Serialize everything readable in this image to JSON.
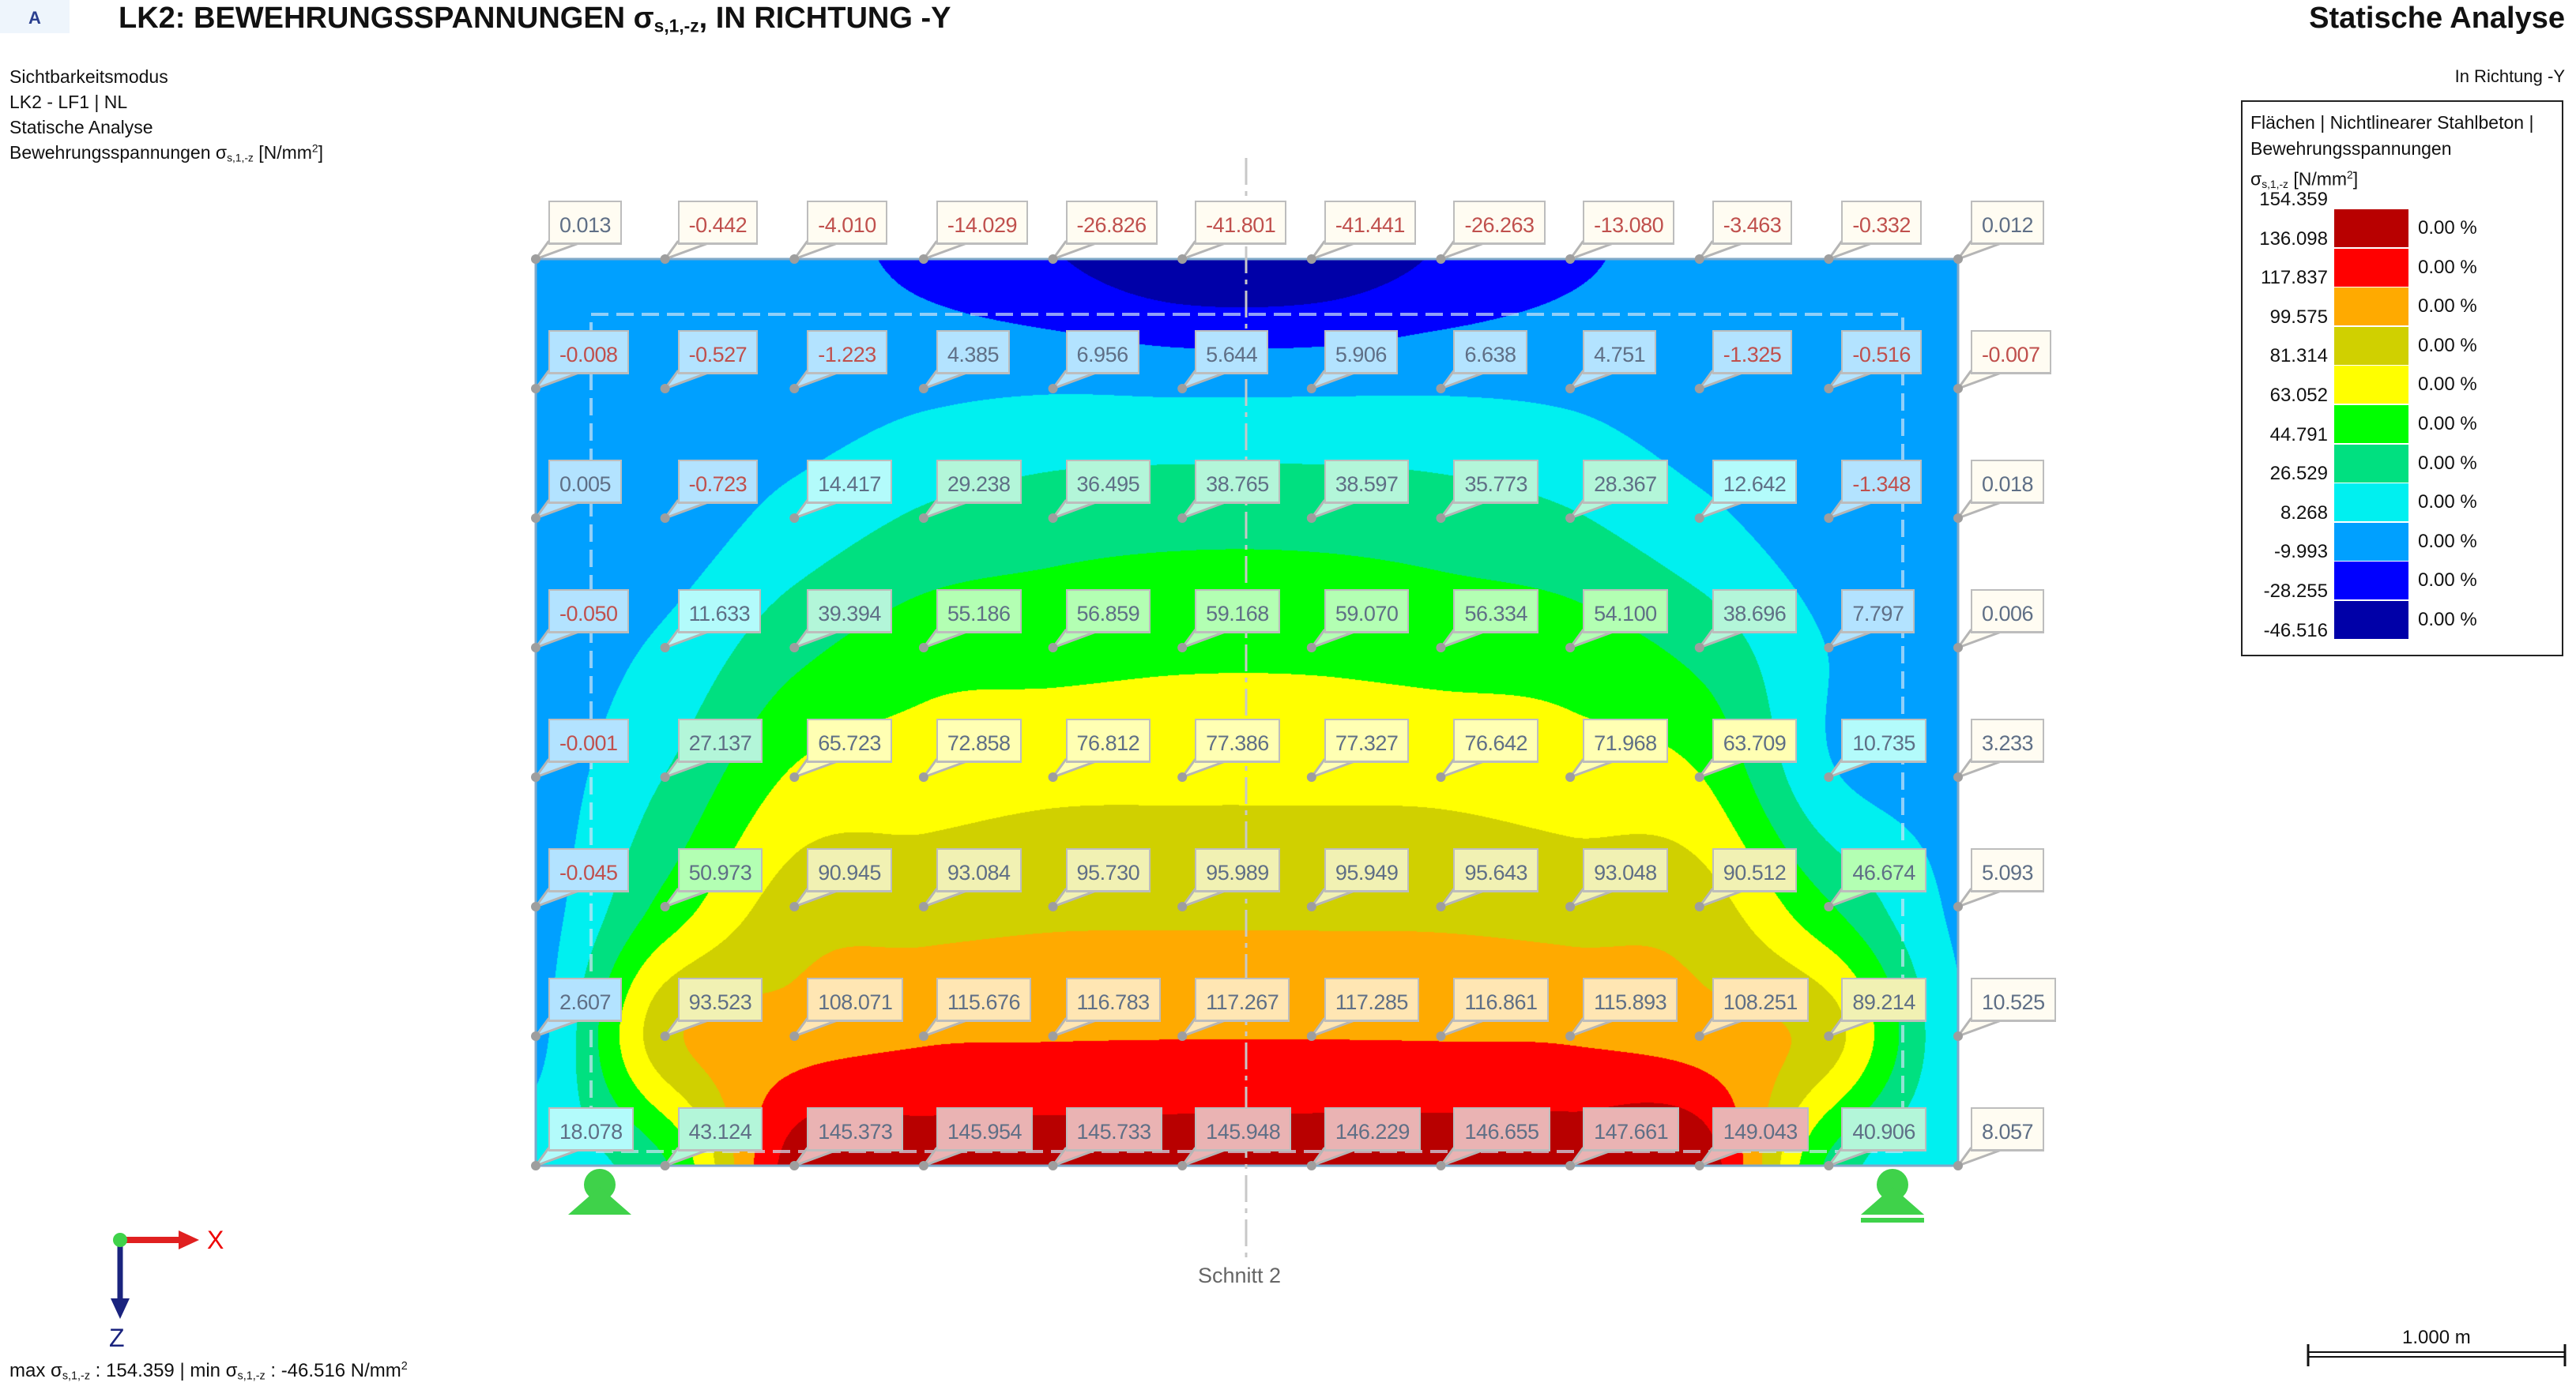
{
  "header": {
    "tab": "A",
    "title_main": "LK2: BEWEHRUNGSSPANNUNGEN σ",
    "title_sub": "s,1,-z",
    "title_rest": ", IN RICHTUNG -Y",
    "right_title": "Statische Analyse",
    "direction": "In Richtung -Y"
  },
  "info": {
    "line1": "Sichtbarkeitsmodus",
    "line2": "LK2 - LF1 | NL",
    "line3": "Statische Analyse",
    "line4_main": "Bewehrungsspannungen σ",
    "line4_sub": "s,1,-z",
    "line4_unit": " [N/mm",
    "line4_sup": "2",
    "line4_end": "]"
  },
  "legend": {
    "line1": "Flächen | Nichtlinearer Stahlbeton |",
    "line2": "Bewehrungsspannungen",
    "line3_sym": "σ",
    "line3_sub": "s,1,-z",
    "line3_unit": " [N/mm",
    "line3_sup": "2",
    "line3_end": "]",
    "values": [
      "154.359",
      "136.098",
      "117.837",
      "99.575",
      "81.314",
      "63.052",
      "44.791",
      "26.529",
      "8.268",
      "-9.993",
      "-28.255",
      "-46.516"
    ],
    "colors": [
      "#b80000",
      "#ff0000",
      "#ffaa00",
      "#d0d000",
      "#ffff00",
      "#00ff00",
      "#00e080",
      "#00f0f0",
      "#00a0ff",
      "#0000ff",
      "#0000a8"
    ],
    "percents": [
      "0.00 %",
      "0.00 %",
      "0.00 %",
      "0.00 %",
      "0.00 %",
      "0.00 %",
      "0.00 %",
      "0.00 %",
      "0.00 %",
      "0.00 %",
      "0.00 %"
    ]
  },
  "grid_values": [
    [
      "0.013",
      "-0.442",
      "-4.010",
      "-14.029",
      "-26.826",
      "-41.801",
      "-41.441",
      "-26.263",
      "-13.080",
      "-3.463",
      "-0.332",
      "0.012"
    ],
    [
      "-0.008",
      "-0.527",
      "-1.223",
      "4.385",
      "6.956",
      "5.644",
      "5.906",
      "6.638",
      "4.751",
      "-1.325",
      "-0.516",
      "-0.007"
    ],
    [
      "0.005",
      "-0.723",
      "14.417",
      "29.238",
      "36.495",
      "38.765",
      "38.597",
      "35.773",
      "28.367",
      "12.642",
      "-1.348",
      "0.018"
    ],
    [
      "-0.050",
      "11.633",
      "39.394",
      "55.186",
      "56.859",
      "59.168",
      "59.070",
      "56.334",
      "54.100",
      "38.696",
      "7.797",
      "0.006"
    ],
    [
      "-0.001",
      "27.137",
      "65.723",
      "72.858",
      "76.812",
      "77.386",
      "77.327",
      "76.642",
      "71.968",
      "63.709",
      "10.735",
      "3.233"
    ],
    [
      "-0.045",
      "50.973",
      "90.945",
      "93.084",
      "95.730",
      "95.989",
      "95.949",
      "95.643",
      "93.048",
      "90.512",
      "46.674",
      "5.093"
    ],
    [
      "2.607",
      "93.523",
      "108.071",
      "115.676",
      "116.783",
      "117.267",
      "117.285",
      "116.861",
      "115.893",
      "108.251",
      "89.214",
      "10.525"
    ],
    [
      "18.078",
      "43.124",
      "145.373",
      "145.954",
      "145.733",
      "145.948",
      "146.229",
      "146.655",
      "147.661",
      "149.043",
      "40.906",
      "8.057"
    ]
  ],
  "label_colors": {
    "negative": "#c0504d",
    "positive": "#5f6f86",
    "outside_bg": "#fffcf2"
  },
  "section_label": "Schnitt 2",
  "axes": {
    "x": "X",
    "z": "Z"
  },
  "footer": {
    "max_label": "max σ",
    "max_sub": "s,1,-z",
    "max_value": " : 154.359 | min σ",
    "min_sub": "s,1,-z",
    "min_value": " : -46.516 N/mm",
    "unit_sup": "2"
  },
  "scale_bar": "1.000 m",
  "icons": {
    "support": "pinned-support-icon",
    "axes": "coordinate-axes-icon"
  }
}
